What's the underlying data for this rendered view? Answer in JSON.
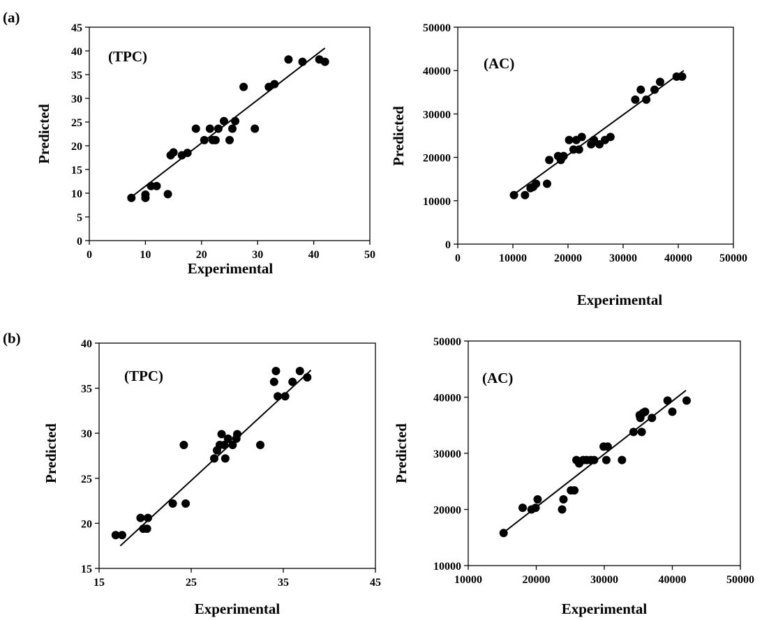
{
  "panel_labels": [
    "(a)",
    "(b)"
  ],
  "chart_data": [
    {
      "type": "scatter",
      "panel": "(a)",
      "inset_label": "(TPC)",
      "xlabel": "Experimental",
      "ylabel": "Predicted",
      "xlim": [
        0,
        50
      ],
      "ylim": [
        0,
        45
      ],
      "xticks": [
        "0",
        "10",
        "20",
        "30",
        "40",
        "50"
      ],
      "yticks": [
        "0",
        "5",
        "10",
        "15",
        "20",
        "25",
        "30",
        "35",
        "40",
        "45"
      ],
      "trendline": [
        [
          7.5,
          9.2
        ],
        [
          42,
          40.6
        ]
      ],
      "points": [
        [
          7.5,
          9
        ],
        [
          10,
          9
        ],
        [
          10,
          9.7
        ],
        [
          11,
          11.5
        ],
        [
          12,
          11.5
        ],
        [
          14,
          9.8
        ],
        [
          14.5,
          18
        ],
        [
          15,
          18.6
        ],
        [
          16.5,
          18
        ],
        [
          17.5,
          18.5
        ],
        [
          19,
          23.6
        ],
        [
          20.5,
          21.2
        ],
        [
          21.5,
          23.6
        ],
        [
          22,
          21.2
        ],
        [
          22.5,
          21.2
        ],
        [
          23,
          23.6
        ],
        [
          24,
          25.2
        ],
        [
          25,
          21.2
        ],
        [
          25.5,
          23.6
        ],
        [
          26,
          25.2
        ],
        [
          27.5,
          32.4
        ],
        [
          29.5,
          23.6
        ],
        [
          32,
          32.4
        ],
        [
          33,
          33
        ],
        [
          35.5,
          38.2
        ],
        [
          38,
          37.7
        ],
        [
          41,
          38.2
        ],
        [
          42,
          37.7
        ]
      ]
    },
    {
      "type": "scatter",
      "panel": "(a)",
      "inset_label": "(AC)",
      "xlabel": "Experimental",
      "ylabel": "Predicted",
      "xlim": [
        0,
        50000
      ],
      "ylim": [
        0,
        50000
      ],
      "xticks": [
        "0",
        "10000",
        "20000",
        "30000",
        "40000",
        "50000"
      ],
      "yticks": [
        "0",
        "10000",
        "20000",
        "30000",
        "40000",
        "50000"
      ],
      "trendline": [
        [
          10000,
          11300
        ],
        [
          41000,
          40000
        ]
      ],
      "points": [
        [
          10200,
          11300
        ],
        [
          12200,
          11300
        ],
        [
          13200,
          12900
        ],
        [
          13700,
          13200
        ],
        [
          14200,
          13900
        ],
        [
          16200,
          13900
        ],
        [
          16600,
          19400
        ],
        [
          18200,
          20300
        ],
        [
          18700,
          19400
        ],
        [
          19200,
          20300
        ],
        [
          20200,
          24000
        ],
        [
          21000,
          21800
        ],
        [
          21500,
          24000
        ],
        [
          22000,
          21800
        ],
        [
          22500,
          24700
        ],
        [
          24200,
          23000
        ],
        [
          24700,
          24000
        ],
        [
          25700,
          23000
        ],
        [
          26700,
          24000
        ],
        [
          27700,
          24700
        ],
        [
          32200,
          33300
        ],
        [
          33200,
          35600
        ],
        [
          34200,
          33300
        ],
        [
          35700,
          35600
        ],
        [
          36700,
          37400
        ],
        [
          39700,
          38600
        ],
        [
          40700,
          38600
        ]
      ]
    },
    {
      "type": "scatter",
      "panel": "(b)",
      "inset_label": "(TPC)",
      "xlabel": "Experimental",
      "ylabel": "Predicted",
      "xlim": [
        15,
        45
      ],
      "ylim": [
        15,
        40
      ],
      "xticks": [
        "15",
        "25",
        "35",
        "45"
      ],
      "yticks": [
        "15",
        "20",
        "25",
        "30",
        "35",
        "40"
      ],
      "trendline": [
        [
          17.3,
          17.5
        ],
        [
          38,
          37
        ]
      ],
      "points": [
        [
          16.8,
          18.7
        ],
        [
          17.5,
          18.7
        ],
        [
          19.5,
          20.6
        ],
        [
          19.8,
          19.4
        ],
        [
          20.2,
          19.4
        ],
        [
          20.3,
          20.6
        ],
        [
          23,
          22.2
        ],
        [
          24.2,
          28.7
        ],
        [
          24.4,
          22.2
        ],
        [
          27.5,
          27.2
        ],
        [
          27.8,
          28.1
        ],
        [
          28.1,
          28.7
        ],
        [
          28.3,
          29.9
        ],
        [
          28.6,
          28.7
        ],
        [
          28.7,
          27.2
        ],
        [
          29,
          29.4
        ],
        [
          29.5,
          28.7
        ],
        [
          29.9,
          29.4
        ],
        [
          30,
          29.9
        ],
        [
          32.5,
          28.7
        ],
        [
          34,
          35.7
        ],
        [
          34.2,
          36.9
        ],
        [
          34.4,
          34.1
        ],
        [
          35.2,
          34.1
        ],
        [
          36,
          35.7
        ],
        [
          36.8,
          36.9
        ],
        [
          37.6,
          36.2
        ]
      ]
    },
    {
      "type": "scatter",
      "panel": "(b)",
      "inset_label": "(AC)",
      "xlabel": "Experimental",
      "ylabel": "Predicted",
      "xlim": [
        10000,
        50000
      ],
      "ylim": [
        10000,
        50000
      ],
      "xticks": [
        "10000",
        "20000",
        "30000",
        "40000",
        "50000"
      ],
      "yticks": [
        "10000",
        "20000",
        "30000",
        "40000",
        "50000"
      ],
      "trendline": [
        [
          15000,
          15700
        ],
        [
          42000,
          41200
        ]
      ],
      "points": [
        [
          15200,
          15800
        ],
        [
          18000,
          20300
        ],
        [
          19300,
          20000
        ],
        [
          19900,
          20300
        ],
        [
          20200,
          21800
        ],
        [
          23800,
          20000
        ],
        [
          24000,
          21800
        ],
        [
          25100,
          23400
        ],
        [
          25600,
          23400
        ],
        [
          25900,
          28800
        ],
        [
          26300,
          28200
        ],
        [
          26900,
          28800
        ],
        [
          27400,
          28800
        ],
        [
          28000,
          28800
        ],
        [
          28500,
          28800
        ],
        [
          29900,
          31200
        ],
        [
          30300,
          28800
        ],
        [
          30500,
          31200
        ],
        [
          32600,
          28800
        ],
        [
          34300,
          33800
        ],
        [
          35200,
          36800
        ],
        [
          35300,
          36300
        ],
        [
          35500,
          33800
        ],
        [
          35700,
          37200
        ],
        [
          36000,
          37400
        ],
        [
          37000,
          36300
        ],
        [
          39300,
          39400
        ],
        [
          40000,
          37400
        ],
        [
          42100,
          39400
        ]
      ]
    }
  ]
}
